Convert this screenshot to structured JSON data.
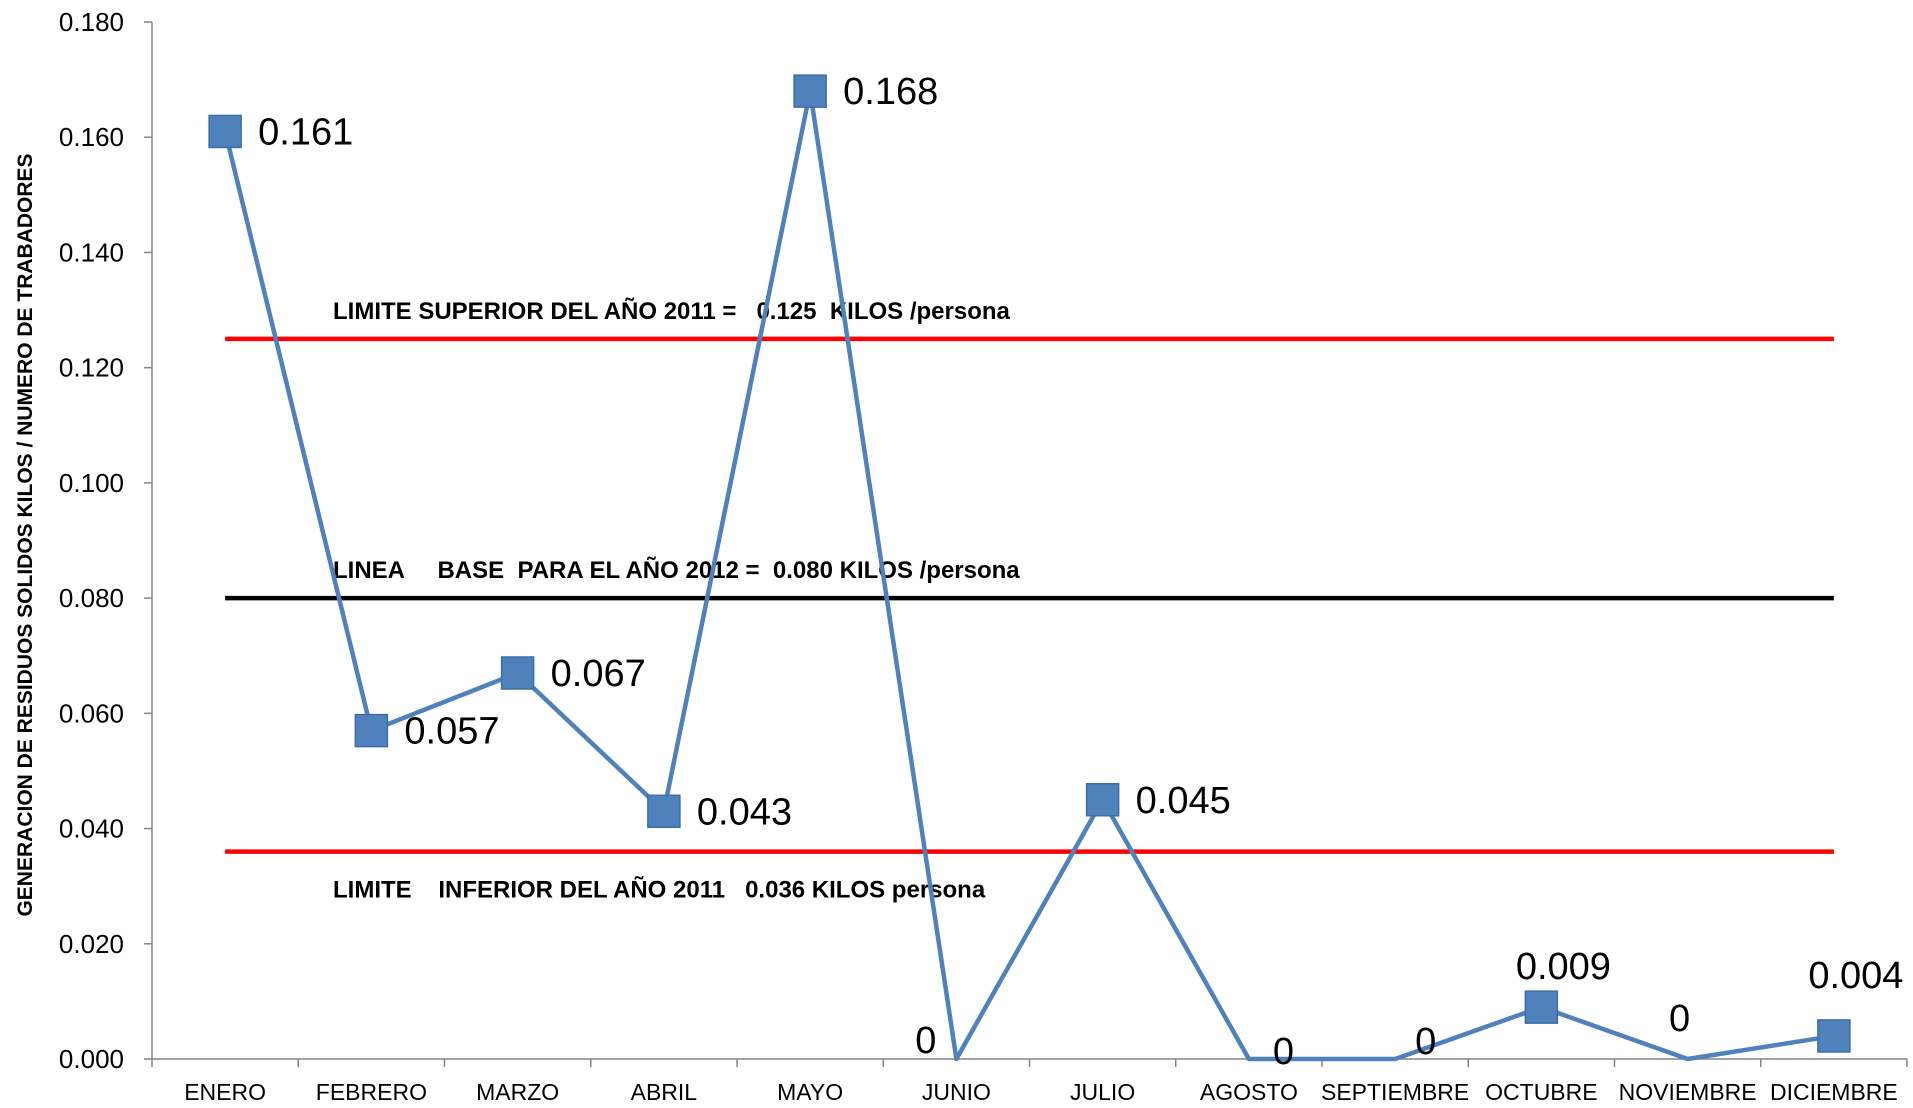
{
  "chart_data": {
    "type": "line",
    "title": "",
    "xlabel": "",
    "ylabel": "GENERACION DE RESIDUOS SOLIDOS KILOS / NUMERO DE  TRABADORES",
    "ylim": [
      0,
      0.18
    ],
    "y_ticks": [
      "0.000",
      "0.020",
      "0.040",
      "0.060",
      "0.080",
      "0.100",
      "0.120",
      "0.140",
      "0.160",
      "0.180"
    ],
    "y_tick_values": [
      0,
      0.02,
      0.04,
      0.06,
      0.08,
      0.1,
      0.12,
      0.14,
      0.16,
      0.18
    ],
    "categories": [
      "ENERO",
      "FEBRERO",
      "MARZO",
      "ABRIL",
      "MAYO",
      "JUNIO",
      "JULIO",
      "AGOSTO",
      "SEPTIEMBRE",
      "OCTUBRE",
      "NOVIEMBRE",
      "DICIEMBRE"
    ],
    "series": [
      {
        "values": [
          0.161,
          0.057,
          0.067,
          0.043,
          0.168,
          0,
          0.045,
          0,
          0,
          0.009,
          0,
          0.004
        ],
        "data_labels": [
          "0.161",
          "0.057",
          "0.067",
          "0.043",
          "0.168",
          "0",
          "0.045",
          "0",
          "0",
          "0.009",
          "0",
          "0.004"
        ],
        "markers": [
          true,
          true,
          true,
          true,
          true,
          false,
          true,
          false,
          false,
          true,
          false,
          true
        ],
        "color": "#4F81BD"
      }
    ],
    "reference_lines": [
      {
        "value": 0.125,
        "color": "#FF0000",
        "label": "LIMITE SUPERIOR DEL AÑO 2011 =   0.125  KILOS /persona"
      },
      {
        "value": 0.08,
        "color": "#000000",
        "label": "LINEA     BASE  PARA EL AÑO 2012 =  0.080 KILOS /persona"
      },
      {
        "value": 0.036,
        "color": "#FF0000",
        "label": "LIMITE    INFERIOR DEL AÑO 2011   0.036 KILOS persona"
      }
    ],
    "grid": false,
    "legend": "none"
  }
}
